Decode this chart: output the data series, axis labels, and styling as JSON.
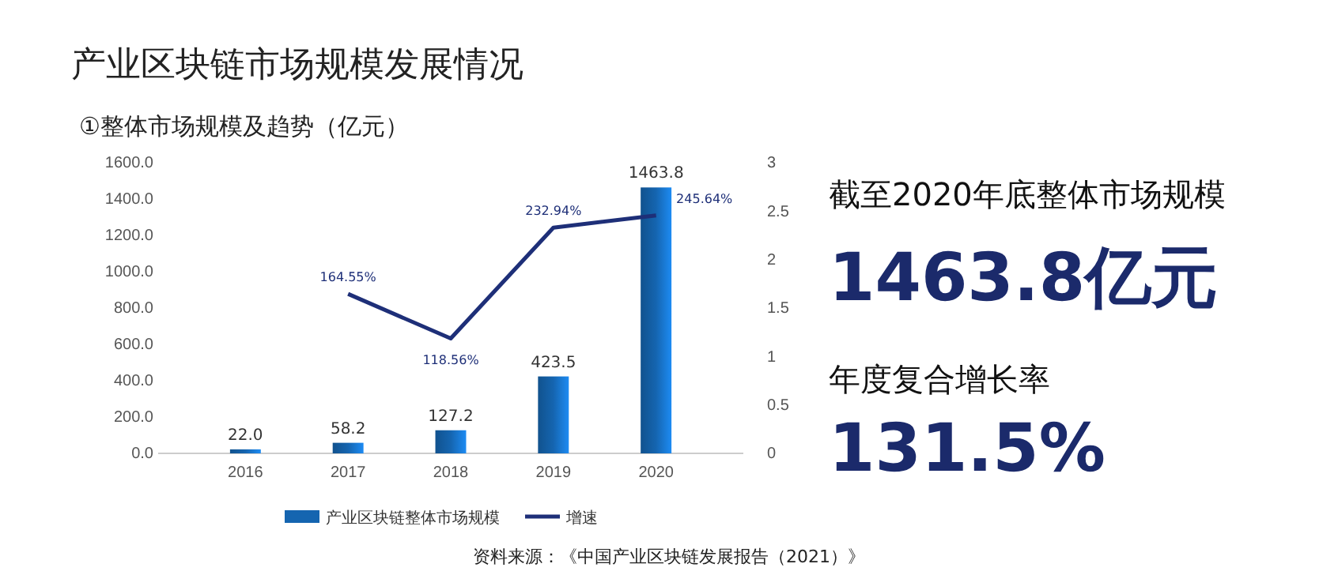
{
  "chart_data": {
    "type": "bar",
    "title": "产业区块链市场规模发展情况",
    "subtitle": "①整体市场规模及趋势（亿元）",
    "categories": [
      "2016",
      "2017",
      "2018",
      "2019",
      "2020"
    ],
    "series": [
      {
        "name": "产业区块链整体市场规模",
        "color": "#1565b0",
        "values": [
          22.0,
          58.2,
          127.2,
          423.5,
          1463.8
        ],
        "value_labels": [
          "22.0",
          "58.2",
          "127.2",
          "423.5",
          "1463.8"
        ]
      },
      {
        "name": "增速",
        "type": "line",
        "axis": "y2",
        "color": "#1e2f78",
        "values": [
          null,
          1.6455,
          1.1856,
          2.3294,
          2.4564
        ],
        "value_labels": [
          null,
          "164.55%",
          "118.56%",
          "232.94%",
          "245.64%"
        ]
      }
    ],
    "ylim": [
      0,
      1600
    ],
    "yticks": [
      {
        "value": 0,
        "label": "0.0"
      },
      {
        "value": 200,
        "label": "200.0"
      },
      {
        "value": 400,
        "label": "400.0"
      },
      {
        "value": 600,
        "label": "600.0"
      },
      {
        "value": 800,
        "label": "800.0"
      },
      {
        "value": 1000,
        "label": "1000.0"
      },
      {
        "value": 1200,
        "label": "1200.0"
      },
      {
        "value": 1400,
        "label": "1400.0"
      },
      {
        "value": 1600,
        "label": "1600.0"
      }
    ],
    "y2lim": [
      0,
      3
    ],
    "y2ticks": [
      0,
      0.5,
      1,
      1.5,
      2,
      2.5,
      3
    ],
    "legend": "bottom",
    "grid": false,
    "annotations": [
      "资料来源：《中国产业区块链发展报告（2021）》",
      "截至2020年底整体市场规模",
      "1463.8亿元",
      "年度复合增长率",
      "131.5%"
    ]
  }
}
